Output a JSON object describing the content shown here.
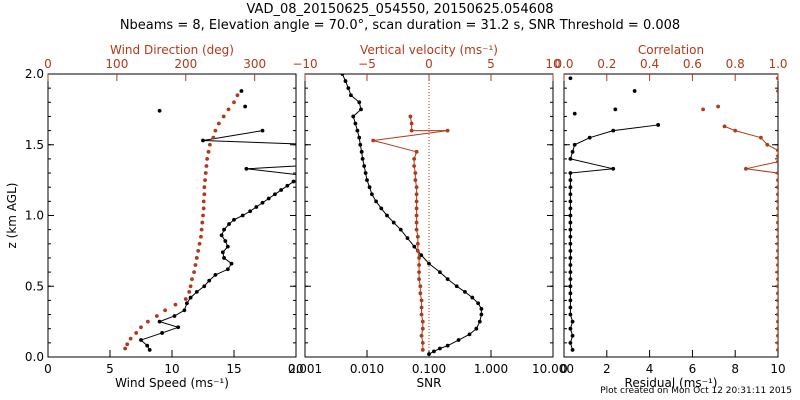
{
  "title_line1": "VAD_08_20150625_054550, 20150625.054608",
  "title_line2": "Nbeams = 8, Elevation angle = 70.0°, scan duration = 31.2 s, SNR Threshold = 0.008",
  "footer": "Plot created on Mon Oct 12 20:31:11 2015",
  "colors": {
    "primary": "#000000",
    "secondary": "#b03a1a"
  },
  "chart_data": [
    {
      "type": "scatter",
      "ylabel": "z (km AGL)",
      "ylim": [
        0,
        2
      ],
      "yticks": [
        "0.0",
        "0.5",
        "1.0",
        "1.5",
        "2.0"
      ],
      "bottom_axis": {
        "label": "Wind Speed (ms⁻¹)",
        "range": [
          0,
          20
        ],
        "ticks": [
          "0",
          "5",
          "10",
          "15",
          "20"
        ]
      },
      "top_axis": {
        "label": "Wind Direction (deg)",
        "range": [
          0,
          360
        ],
        "ticks": [
          "0",
          "100",
          "200",
          "300"
        ]
      },
      "series": [
        {
          "color": "black",
          "axis": "bottom",
          "lines": true,
          "points": [
            [
              8.2,
              0.05
            ],
            [
              8.0,
              0.08
            ],
            [
              7.5,
              0.12
            ],
            [
              9.2,
              0.17
            ],
            [
              10.5,
              0.21
            ],
            [
              9.0,
              0.25
            ],
            [
              10.2,
              0.29
            ],
            [
              11.0,
              0.33
            ],
            [
              11.2,
              0.38
            ],
            [
              11.5,
              0.42
            ],
            [
              12.0,
              0.46
            ],
            [
              12.6,
              0.5
            ],
            [
              13.0,
              0.54
            ],
            [
              13.5,
              0.58
            ],
            [
              14.5,
              0.62
            ],
            [
              14.8,
              0.66
            ],
            [
              14.2,
              0.7
            ],
            [
              14.1,
              0.74
            ],
            [
              14.5,
              0.78
            ],
            [
              14.3,
              0.82
            ],
            [
              14.0,
              0.86
            ],
            [
              14.2,
              0.9
            ],
            [
              14.6,
              0.94
            ],
            [
              15.0,
              0.97
            ],
            [
              15.7,
              1.0
            ],
            [
              16.3,
              1.03
            ],
            [
              16.8,
              1.06
            ],
            [
              17.3,
              1.09
            ],
            [
              17.8,
              1.12
            ],
            [
              18.3,
              1.15
            ],
            [
              18.8,
              1.18
            ],
            [
              19.3,
              1.21
            ],
            [
              19.8,
              1.24
            ],
            [
              21.0,
              1.28
            ],
            [
              16.0,
              1.33
            ],
            [
              22.0,
              1.36
            ],
            [
              22.0,
              1.5
            ],
            [
              12.5,
              1.53
            ],
            [
              17.3,
              1.6
            ]
          ]
        },
        {
          "color": "black",
          "axis": "bottom",
          "lines": false,
          "points": [
            [
              9.0,
              1.74
            ],
            [
              15.9,
              1.77
            ],
            [
              15.6,
              1.88
            ]
          ]
        },
        {
          "color": "#b03a1a",
          "axis": "top",
          "lines": false,
          "points": [
            [
              112,
              0.06
            ],
            [
              115,
              0.09
            ],
            [
              120,
              0.13
            ],
            [
              128,
              0.17
            ],
            [
              135,
              0.21
            ],
            [
              145,
              0.25
            ],
            [
              158,
              0.29
            ],
            [
              170,
              0.33
            ],
            [
              185,
              0.37
            ],
            [
              200,
              0.41
            ],
            [
              205,
              0.46
            ],
            [
              207,
              0.5
            ],
            [
              209,
              0.55
            ],
            [
              212,
              0.6
            ],
            [
              214,
              0.65
            ],
            [
              216,
              0.7
            ],
            [
              218,
              0.75
            ],
            [
              220,
              0.8
            ],
            [
              222,
              0.85
            ],
            [
              223,
              0.9
            ],
            [
              224,
              0.95
            ],
            [
              225,
              1.0
            ],
            [
              226,
              1.05
            ],
            [
              226,
              1.1
            ],
            [
              227,
              1.15
            ],
            [
              227,
              1.2
            ],
            [
              228,
              1.25
            ],
            [
              229,
              1.3
            ],
            [
              230,
              1.35
            ],
            [
              231,
              1.4
            ],
            [
              233,
              1.45
            ],
            [
              235,
              1.5
            ],
            [
              240,
              1.55
            ],
            [
              243,
              1.6
            ],
            [
              248,
              1.65
            ],
            [
              255,
              1.7
            ],
            [
              262,
              1.75
            ],
            [
              270,
              1.8
            ],
            [
              275,
              1.85
            ]
          ]
        }
      ]
    },
    {
      "type": "scatter",
      "xscale": "log",
      "ylim": [
        0,
        2
      ],
      "bottom_axis": {
        "label": "SNR",
        "range": [
          0.001,
          10
        ],
        "ticks": [
          "0.001",
          "0.010",
          "0.100",
          "1.000",
          "10.000"
        ]
      },
      "top_axis": {
        "label": "Vertical velocity (ms⁻¹)",
        "range": [
          -10,
          10
        ],
        "ticks": [
          "−10",
          "−5",
          "0",
          "5",
          "10"
        ]
      },
      "zero_line": 0,
      "series": [
        {
          "color": "black",
          "axis": "bottom",
          "lines": true,
          "points": [
            [
              0.1,
              0.02
            ],
            [
              0.12,
              0.04
            ],
            [
              0.15,
              0.06
            ],
            [
              0.2,
              0.08
            ],
            [
              0.3,
              0.12
            ],
            [
              0.45,
              0.16
            ],
            [
              0.58,
              0.2
            ],
            [
              0.66,
              0.25
            ],
            [
              0.7,
              0.3
            ],
            [
              0.7,
              0.34
            ],
            [
              0.62,
              0.38
            ],
            [
              0.5,
              0.42
            ],
            [
              0.38,
              0.46
            ],
            [
              0.28,
              0.5
            ],
            [
              0.2,
              0.55
            ],
            [
              0.15,
              0.6
            ],
            [
              0.1,
              0.66
            ],
            [
              0.075,
              0.72
            ],
            [
              0.058,
              0.78
            ],
            [
              0.045,
              0.84
            ],
            [
              0.035,
              0.9
            ],
            [
              0.027,
              0.95
            ],
            [
              0.021,
              1.0
            ],
            [
              0.017,
              1.05
            ],
            [
              0.014,
              1.1
            ],
            [
              0.012,
              1.15
            ],
            [
              0.011,
              1.2
            ],
            [
              0.01,
              1.25
            ],
            [
              0.0095,
              1.3
            ],
            [
              0.009,
              1.35
            ],
            [
              0.0085,
              1.4
            ],
            [
              0.0082,
              1.45
            ],
            [
              0.0078,
              1.5
            ],
            [
              0.0075,
              1.55
            ],
            [
              0.007,
              1.6
            ],
            [
              0.0065,
              1.65
            ],
            [
              0.006,
              1.7
            ],
            [
              0.008,
              1.75
            ],
            [
              0.0075,
              1.8
            ],
            [
              0.0055,
              1.85
            ],
            [
              0.005,
              1.9
            ],
            [
              0.0045,
              1.95
            ],
            [
              0.004,
              2.0
            ]
          ]
        },
        {
          "color": "#b03a1a",
          "axis": "top",
          "lines": true,
          "points": [
            [
              -0.5,
              0.05
            ],
            [
              -0.5,
              0.1
            ],
            [
              -0.6,
              0.15
            ],
            [
              -0.5,
              0.2
            ],
            [
              -0.5,
              0.25
            ],
            [
              -0.6,
              0.3
            ],
            [
              -0.6,
              0.35
            ],
            [
              -0.6,
              0.4
            ],
            [
              -0.7,
              0.45
            ],
            [
              -0.7,
              0.5
            ],
            [
              -0.8,
              0.55
            ],
            [
              -0.8,
              0.6
            ],
            [
              -0.8,
              0.65
            ],
            [
              -0.8,
              0.7
            ],
            [
              -0.9,
              0.75
            ],
            [
              -0.9,
              0.8
            ],
            [
              -0.9,
              0.85
            ],
            [
              -1.0,
              0.9
            ],
            [
              -1.0,
              0.95
            ],
            [
              -1.0,
              1.0
            ],
            [
              -1.0,
              1.05
            ],
            [
              -1.0,
              1.1
            ],
            [
              -1.0,
              1.15
            ],
            [
              -1.0,
              1.2
            ],
            [
              -1.1,
              1.25
            ],
            [
              -1.1,
              1.3
            ],
            [
              -1.2,
              1.35
            ],
            [
              -1.2,
              1.4
            ],
            [
              -1.0,
              1.45
            ],
            [
              -4.5,
              1.53
            ],
            [
              1.5,
              1.6
            ],
            [
              -1.4,
              1.6
            ],
            [
              -1.4,
              1.65
            ],
            [
              -1.5,
              1.7
            ]
          ]
        }
      ]
    },
    {
      "type": "scatter",
      "ylim": [
        0,
        2
      ],
      "bottom_axis": {
        "label": "Residual (ms⁻¹)",
        "range": [
          0,
          10
        ],
        "ticks": [
          "0",
          "2",
          "4",
          "6",
          "8",
          "10"
        ]
      },
      "top_axis": {
        "label": "Correlation",
        "range": [
          0,
          1
        ],
        "ticks": [
          "0.0",
          "0.2",
          "0.4",
          "0.6",
          "0.8",
          "1.0"
        ]
      },
      "series": [
        {
          "color": "black",
          "axis": "bottom",
          "lines": true,
          "points": [
            [
              0.4,
              0.05
            ],
            [
              0.3,
              0.1
            ],
            [
              0.4,
              0.15
            ],
            [
              0.3,
              0.2
            ],
            [
              0.4,
              0.25
            ],
            [
              0.3,
              0.3
            ],
            [
              0.3,
              0.35
            ],
            [
              0.3,
              0.4
            ],
            [
              0.3,
              0.45
            ],
            [
              0.3,
              0.5
            ],
            [
              0.3,
              0.55
            ],
            [
              0.3,
              0.6
            ],
            [
              0.3,
              0.65
            ],
            [
              0.3,
              0.7
            ],
            [
              0.3,
              0.75
            ],
            [
              0.3,
              0.8
            ],
            [
              0.3,
              0.85
            ],
            [
              0.3,
              0.9
            ],
            [
              0.3,
              0.95
            ],
            [
              0.3,
              1.0
            ],
            [
              0.3,
              1.05
            ],
            [
              0.3,
              1.1
            ],
            [
              0.3,
              1.15
            ],
            [
              0.3,
              1.2
            ],
            [
              0.3,
              1.25
            ],
            [
              0.3,
              1.3
            ],
            [
              2.3,
              1.33
            ],
            [
              0.3,
              1.4
            ],
            [
              0.4,
              1.45
            ],
            [
              0.5,
              1.5
            ],
            [
              1.2,
              1.55
            ],
            [
              2.3,
              1.6
            ],
            [
              4.4,
              1.64
            ]
          ]
        },
        {
          "color": "black",
          "axis": "bottom",
          "lines": false,
          "points": [
            [
              0.5,
              1.72
            ],
            [
              2.4,
              1.75
            ],
            [
              3.3,
              1.88
            ],
            [
              0.3,
              1.97
            ]
          ]
        },
        {
          "color": "#b03a1a",
          "axis": "top",
          "lines": true,
          "points": [
            [
              1.0,
              0.05
            ],
            [
              1.0,
              0.1
            ],
            [
              1.0,
              0.15
            ],
            [
              1.0,
              0.2
            ],
            [
              1.0,
              0.25
            ],
            [
              1.0,
              0.3
            ],
            [
              1.0,
              0.35
            ],
            [
              1.0,
              0.4
            ],
            [
              1.0,
              0.45
            ],
            [
              1.0,
              0.5
            ],
            [
              1.0,
              0.55
            ],
            [
              1.0,
              0.6
            ],
            [
              1.0,
              0.65
            ],
            [
              1.0,
              0.7
            ],
            [
              1.0,
              0.75
            ],
            [
              1.0,
              0.8
            ],
            [
              1.0,
              0.85
            ],
            [
              1.0,
              0.9
            ],
            [
              1.0,
              0.95
            ],
            [
              1.0,
              1.0
            ],
            [
              1.0,
              1.05
            ],
            [
              1.0,
              1.1
            ],
            [
              1.0,
              1.15
            ],
            [
              1.0,
              1.2
            ],
            [
              1.0,
              1.25
            ],
            [
              1.0,
              1.3
            ],
            [
              0.85,
              1.33
            ],
            [
              1.0,
              1.38
            ],
            [
              1.0,
              1.42
            ],
            [
              1.0,
              1.46
            ],
            [
              0.95,
              1.5
            ],
            [
              0.92,
              1.55
            ],
            [
              0.8,
              1.6
            ],
            [
              0.75,
              1.63
            ]
          ]
        },
        {
          "color": "#b03a1a",
          "axis": "top",
          "lines": false,
          "points": [
            [
              0.65,
              1.75
            ],
            [
              0.72,
              1.77
            ],
            [
              1.0,
              1.88
            ],
            [
              1.0,
              1.97
            ]
          ]
        }
      ]
    }
  ]
}
